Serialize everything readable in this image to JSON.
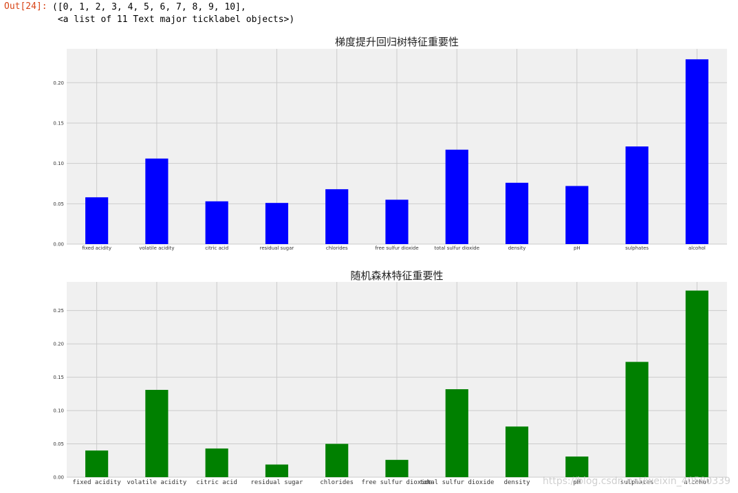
{
  "cell": {
    "prompt": "Out[24]:",
    "output_lines": [
      "([0, 1, 2, 3, 4, 5, 6, 7, 8, 9, 10],",
      " <a list of 11 Text major ticklabel objects>)"
    ]
  },
  "watermark": "https://blog.csdn.net/weixin_40580339",
  "chart_data": [
    {
      "type": "bar",
      "title": "梯度提升回归树特征重要性",
      "categories": [
        "fixed acidity",
        "volatile acidity",
        "citric acid",
        "residual sugar",
        "chlorides",
        "free sulfur dioxide",
        "total sulfur dioxide",
        "density",
        "pH",
        "sulphates",
        "alcohol"
      ],
      "values": [
        0.058,
        0.106,
        0.053,
        0.051,
        0.068,
        0.055,
        0.117,
        0.076,
        0.072,
        0.121,
        0.229
      ],
      "yticks": [
        "0.00",
        "0.05",
        "0.10",
        "0.15",
        "0.20"
      ],
      "ylim": [
        0,
        0.242
      ],
      "color": "#0000ff",
      "grid": true,
      "xlabel": "",
      "ylabel": ""
    },
    {
      "type": "bar",
      "title": "随机森林特征重要性",
      "categories": [
        "fixed acidity",
        "volatile acidity",
        "citric acid",
        "residual sugar",
        "chlorides",
        "free sulfur dioxide",
        "total sulfur dioxide",
        "density",
        "pH",
        "sulphates",
        "alcohol"
      ],
      "values": [
        0.04,
        0.131,
        0.043,
        0.019,
        0.05,
        0.026,
        0.132,
        0.076,
        0.031,
        0.173,
        0.28
      ],
      "yticks": [
        "0.00",
        "0.05",
        "0.10",
        "0.15",
        "0.20",
        "0.25"
      ],
      "ylim": [
        0,
        0.293
      ],
      "color": "#008000",
      "grid": true,
      "xlabel": "",
      "ylabel": ""
    }
  ]
}
